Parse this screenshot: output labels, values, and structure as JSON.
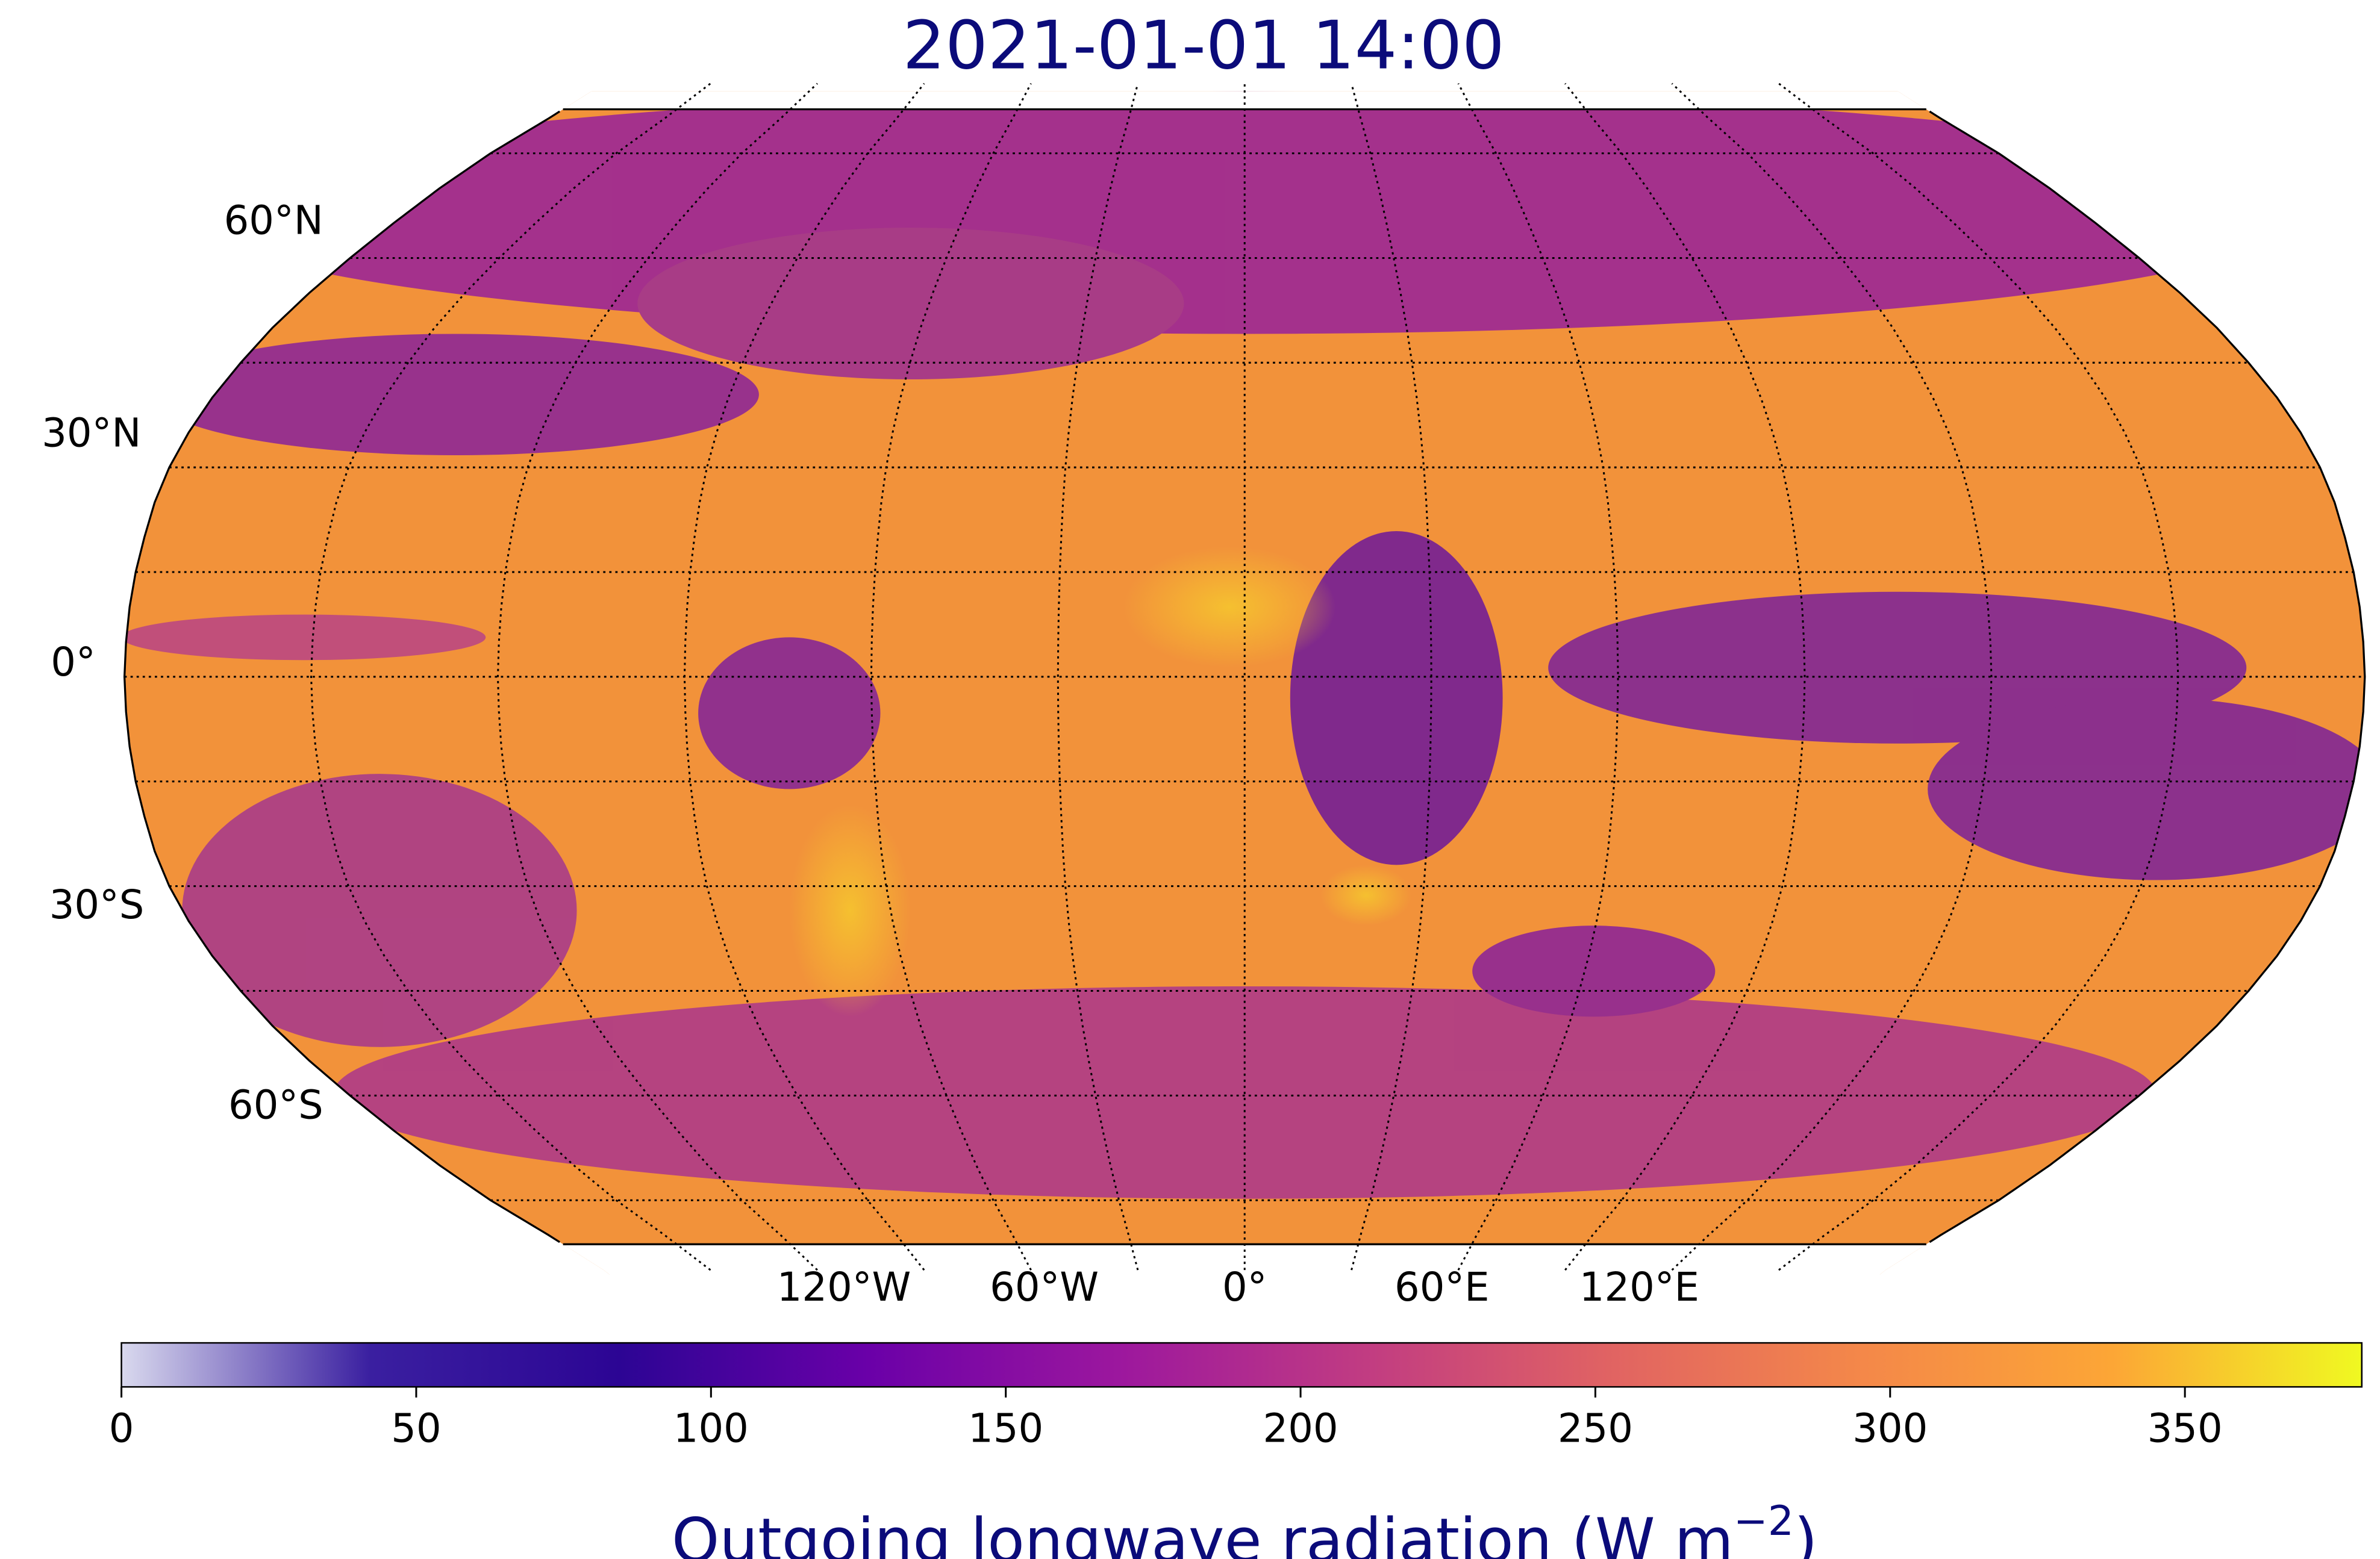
{
  "title": "2021-01-01 14:00",
  "map": {
    "projection": "Robinson",
    "lat_labels": [
      "60°N",
      "30°N",
      "0°",
      "30°S",
      "60°S"
    ],
    "lon_labels": [
      "120°W",
      "60°W",
      "0°",
      "60°E",
      "120°E"
    ]
  },
  "colorbar": {
    "lim": [
      0,
      380
    ],
    "ticks": [
      0,
      50,
      100,
      150,
      200,
      250,
      300,
      350
    ],
    "colormap": [
      "#d9d9ee",
      "#3a1fa0",
      "#2c0594",
      "#6a00a8",
      "#9c179e",
      "#c13c82",
      "#e16462",
      "#f48849",
      "#fca636",
      "#f0f921"
    ],
    "label": {
      "text": "Outgoing longwave radiation (W m",
      "superscript": "−2",
      "suffix": ")"
    }
  }
}
